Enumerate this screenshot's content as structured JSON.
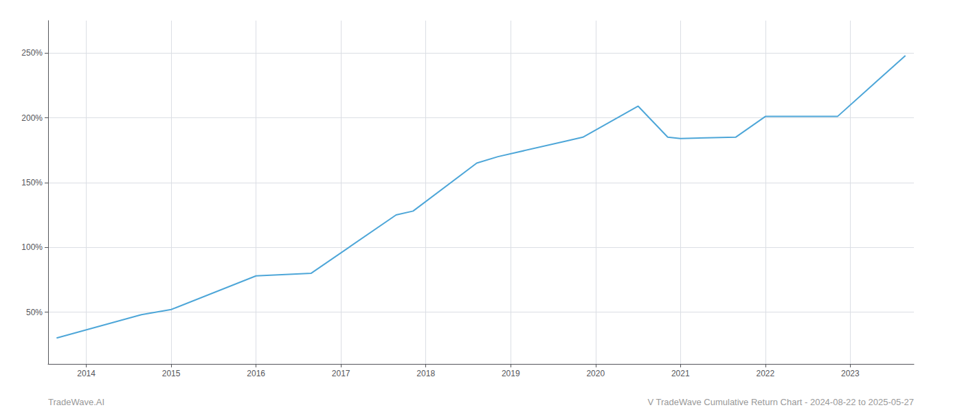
{
  "chart_data": {
    "type": "line",
    "x": [
      2013.65,
      2014.65,
      2015.0,
      2016.0,
      2016.65,
      2017.65,
      2017.85,
      2018.6,
      2018.85,
      2019.65,
      2019.85,
      2020.5,
      2020.85,
      2021.0,
      2021.65,
      2022.0,
      2022.85,
      2023.65
    ],
    "values": [
      30,
      48,
      52,
      78,
      80,
      125,
      128,
      165,
      170,
      182,
      185,
      209,
      185,
      184,
      185,
      201,
      201,
      248
    ],
    "color": "#4da6d8",
    "xlim": [
      2013.55,
      2023.75
    ],
    "xticks": [
      2014,
      2015,
      2016,
      2017,
      2018,
      2019,
      2020,
      2021,
      2022,
      2023
    ],
    "ylim": [
      10,
      275
    ],
    "yticks": [
      {
        "value": 50,
        "label": "50%"
      },
      {
        "value": 100,
        "label": "100%"
      },
      {
        "value": 150,
        "label": "150%"
      },
      {
        "value": 200,
        "label": "200%"
      },
      {
        "value": 250,
        "label": "250%"
      }
    ],
    "grid": true,
    "annotations": [
      "TradeWave.AI",
      "V TradeWave Cumulative Return Chart - 2024-08-22 to 2025-05-27"
    ]
  }
}
